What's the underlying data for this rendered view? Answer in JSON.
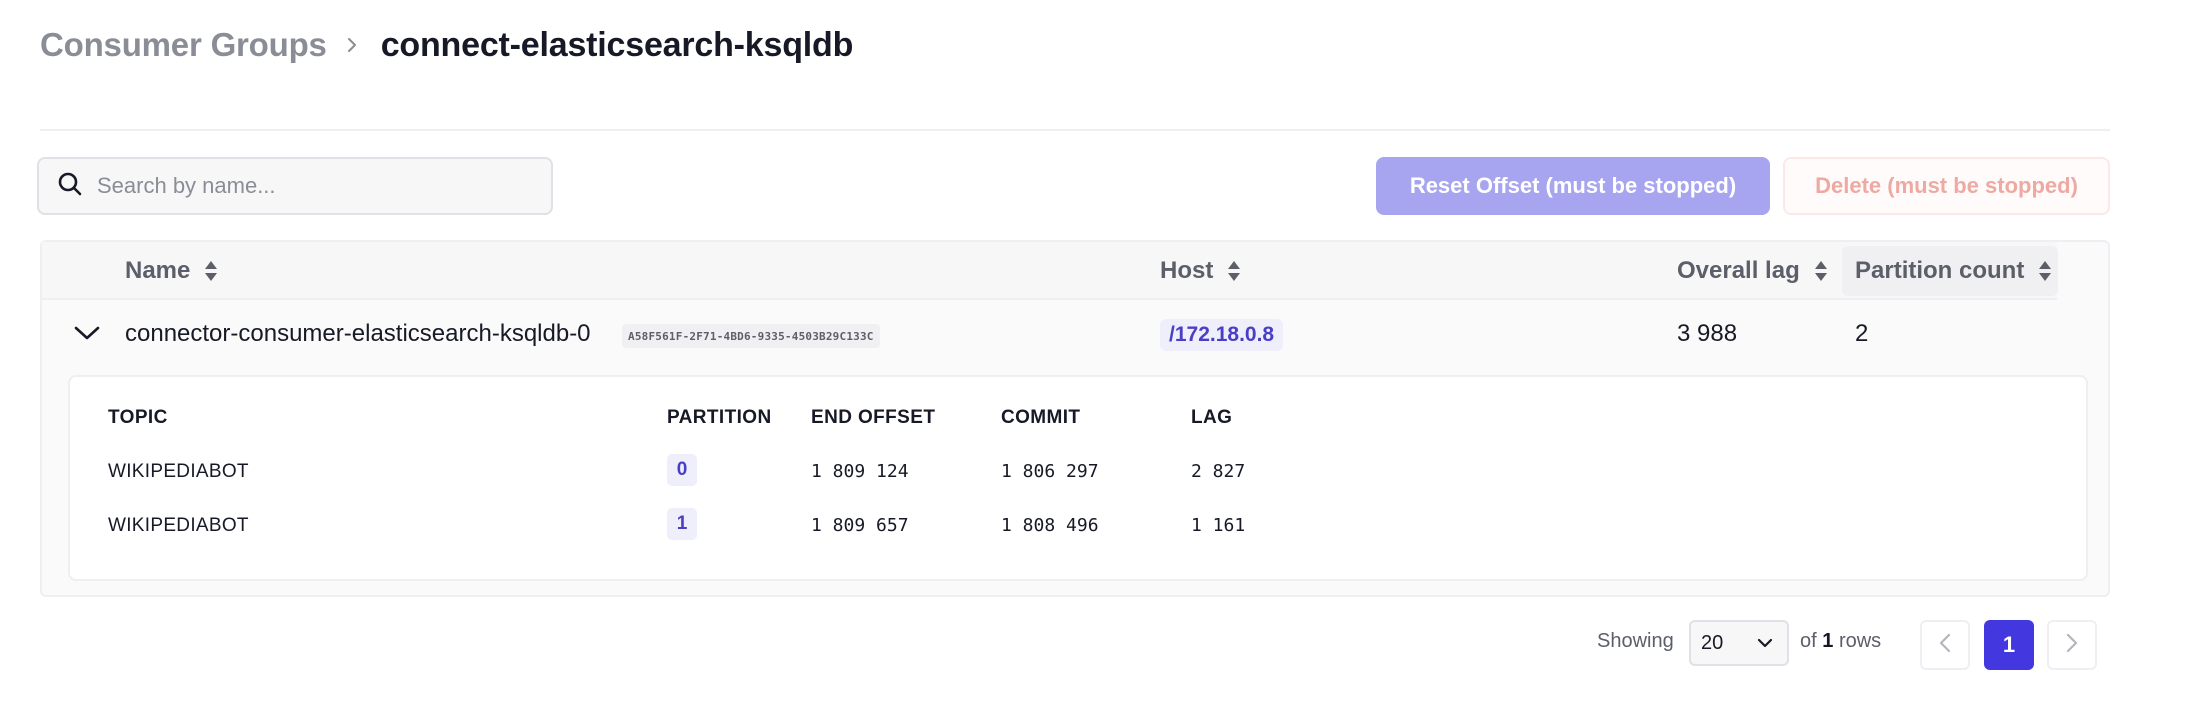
{
  "breadcrumb": {
    "parent": "Consumer Groups",
    "current": "connect-elasticsearch-ksqldb"
  },
  "search": {
    "placeholder": "Search by name...",
    "value": ""
  },
  "actions": {
    "reset_label": "Reset Offset (must be stopped)",
    "delete_label": "Delete (must be stopped)"
  },
  "table": {
    "headers": {
      "name": "Name",
      "host": "Host",
      "overall_lag": "Overall lag",
      "partition_count": "Partition count"
    },
    "rows": [
      {
        "name": "connector-consumer-elasticsearch-ksqldb-0",
        "id": "A58F561F-2F71-4BD6-9335-4503B29C133C",
        "host": "/172.18.0.8",
        "overall_lag": "3 988",
        "partition_count": "2",
        "expanded": true,
        "detail": {
          "headers": {
            "topic": "TOPIC",
            "partition": "PARTITION",
            "end_offset": "END OFFSET",
            "commit": "COMMIT",
            "lag": "LAG"
          },
          "rows": [
            {
              "topic": "WIKIPEDIABOT",
              "partition": "0",
              "end_offset": "1 809 124",
              "commit": "1 806 297",
              "lag": "2 827"
            },
            {
              "topic": "WIKIPEDIABOT",
              "partition": "1",
              "end_offset": "1 809 657",
              "commit": "1 808 496",
              "lag": "1 161"
            }
          ]
        }
      }
    ]
  },
  "pagination": {
    "showing_label": "Showing",
    "page_size": "20",
    "of_label": "of",
    "total_rows": "1",
    "rows_label": "rows",
    "current_page": "1"
  },
  "colors": {
    "primary": "#4338e0",
    "primary_disabled": "#a7a4f0",
    "danger_disabled": "#eeaaa2",
    "host_tag_text": "#4a3fc4"
  }
}
